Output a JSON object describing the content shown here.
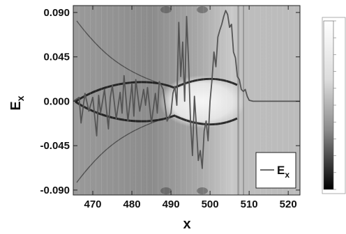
{
  "chart_data": {
    "type": "line",
    "xlabel": "x",
    "ylabel": "E",
    "ylabel_sub": "x",
    "xlim": [
      465,
      523
    ],
    "ylim": [
      -0.095,
      0.097
    ],
    "xticks": [
      "470",
      "480",
      "490",
      "500",
      "510",
      "520"
    ],
    "yticks": [
      "0.090",
      "0.045",
      "0.000",
      "-0.045",
      "-0.090"
    ],
    "background": "grayscale density field (colormap image behind the line)",
    "legend": {
      "position": "bottom-right",
      "label": "E",
      "label_sub": "x"
    },
    "colorbar": {
      "position": "right",
      "colormap": "white-to-black grayscale"
    },
    "series": [
      {
        "name": "Ex",
        "color": "#555555",
        "x": [
          465,
          466.5,
          467,
          468,
          469,
          470,
          471,
          471.5,
          472,
          473,
          474,
          474.5,
          475,
          476,
          477,
          477.5,
          478,
          479,
          480,
          480.5,
          481,
          482,
          483,
          483.5,
          484,
          485,
          486,
          486.5,
          487,
          488,
          488.5,
          489,
          490,
          490.5,
          491,
          491.5,
          492,
          492.5,
          493,
          493.5,
          494,
          494.5,
          495,
          495.5,
          496,
          496.5,
          497,
          497.5,
          498,
          498.5,
          499,
          499.5,
          500,
          500.5,
          501,
          501.5,
          502,
          502.5,
          503,
          503.5,
          504,
          504.5,
          505,
          505.5,
          506,
          506.5,
          507,
          507.5,
          508,
          508.5,
          509,
          509.5,
          510,
          511,
          512,
          513,
          515,
          518,
          523
        ],
        "y": [
          0.0,
          0.004,
          -0.022,
          0.008,
          -0.01,
          0.004,
          -0.035,
          0.006,
          -0.012,
          0.012,
          -0.028,
          0.004,
          0.016,
          -0.018,
          0.009,
          -0.012,
          0.026,
          -0.02,
          0.018,
          -0.015,
          0.022,
          -0.01,
          0.012,
          -0.004,
          0.014,
          -0.022,
          0.008,
          -0.012,
          0.02,
          0.012,
          -0.004,
          -0.02,
          -0.012,
          0.008,
          0.015,
          -0.004,
          0.08,
          0.025,
          0.06,
          0.0,
          0.086,
          0.04,
          -0.02,
          -0.055,
          0.005,
          -0.025,
          -0.06,
          -0.05,
          -0.068,
          -0.03,
          -0.02,
          -0.04,
          0.0,
          0.022,
          0.05,
          0.035,
          0.065,
          0.072,
          0.078,
          0.086,
          0.092,
          0.088,
          0.075,
          0.078,
          0.05,
          0.044,
          0.025,
          0.022,
          0.012,
          0.01,
          0.012,
          0.005,
          0.001,
          0.0,
          0.0,
          0.0,
          0.0,
          0.0,
          0.0
        ]
      }
    ]
  }
}
